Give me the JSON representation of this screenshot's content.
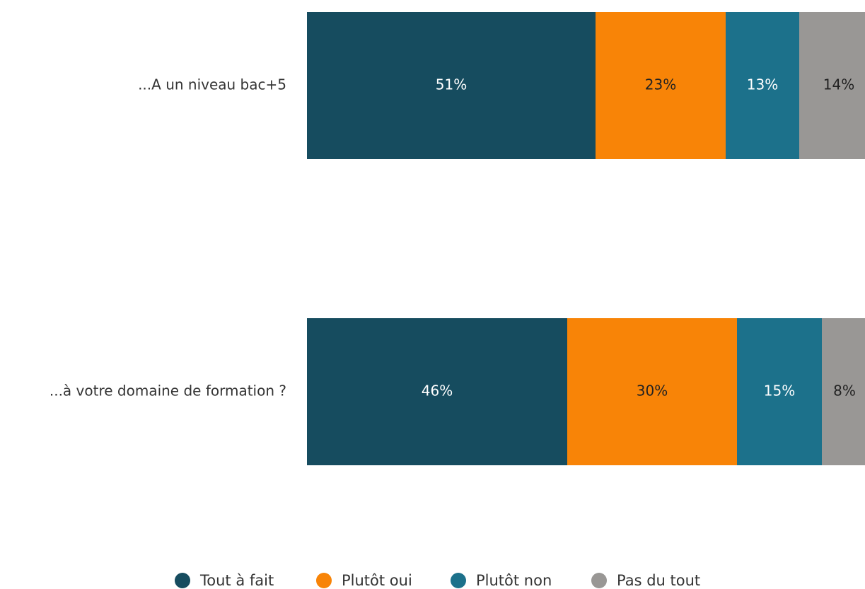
{
  "chart_data": {
    "type": "stacked-bar-horizontal",
    "categories": [
      "...A un niveau bac+5",
      "...à votre domaine de formation ?"
    ],
    "series": [
      {
        "name": "Tout à fait",
        "color": "#164c5f",
        "values": [
          51,
          46
        ],
        "value_labels": [
          "51%",
          "46%"
        ]
      },
      {
        "name": "Plutôt oui",
        "color": "#f88407",
        "values": [
          23,
          30
        ],
        "value_labels": [
          "23%",
          "30%"
        ]
      },
      {
        "name": "Plutôt non",
        "color": "#1c718b",
        "values": [
          13,
          15
        ],
        "value_labels": [
          "13%",
          "15%"
        ]
      },
      {
        "name": "Pas du tout",
        "color": "#999795",
        "values": [
          14,
          8
        ],
        "value_labels": [
          "14%",
          "8%"
        ]
      }
    ],
    "legend": "bottom"
  }
}
